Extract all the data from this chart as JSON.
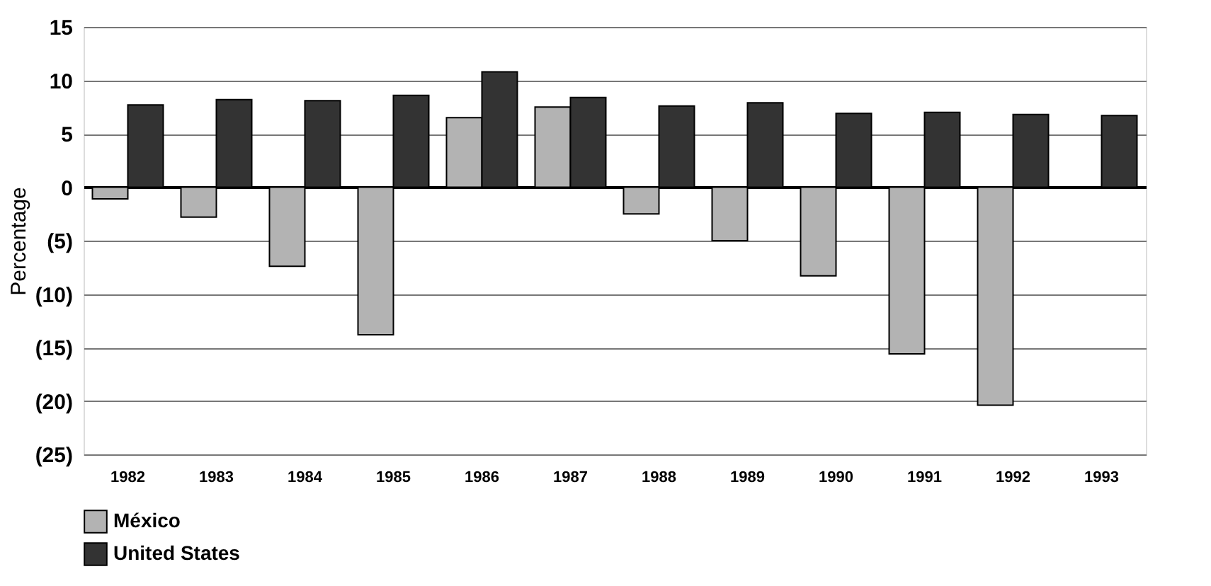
{
  "chart_data": {
    "type": "bar",
    "ylabel": "Percentage",
    "categories": [
      "1982",
      "1983",
      "1984",
      "1985",
      "1986",
      "1987",
      "1988",
      "1989",
      "1990",
      "1991",
      "1992",
      "1993"
    ],
    "series": [
      {
        "name": "México",
        "color": "#b3b3b3",
        "values": [
          -1.1,
          -2.8,
          -7.4,
          -13.8,
          6.5,
          7.5,
          -2.5,
          -5.0,
          -8.3,
          -15.6,
          -20.4,
          null
        ]
      },
      {
        "name": "United States",
        "color": "#333333",
        "values": [
          7.7,
          8.2,
          8.1,
          8.6,
          10.8,
          8.4,
          7.6,
          7.9,
          6.9,
          7.0,
          6.8,
          6.7
        ]
      }
    ],
    "ylim": [
      -25,
      15
    ],
    "yticks": [
      {
        "value": -25,
        "label": "(25)"
      },
      {
        "value": -20,
        "label": "(20)"
      },
      {
        "value": -15,
        "label": "(15)"
      },
      {
        "value": -10,
        "label": "(10)"
      },
      {
        "value": -5,
        "label": "(5)"
      },
      0,
      5,
      10,
      15
    ],
    "grid": "y",
    "legend": "bottom"
  }
}
